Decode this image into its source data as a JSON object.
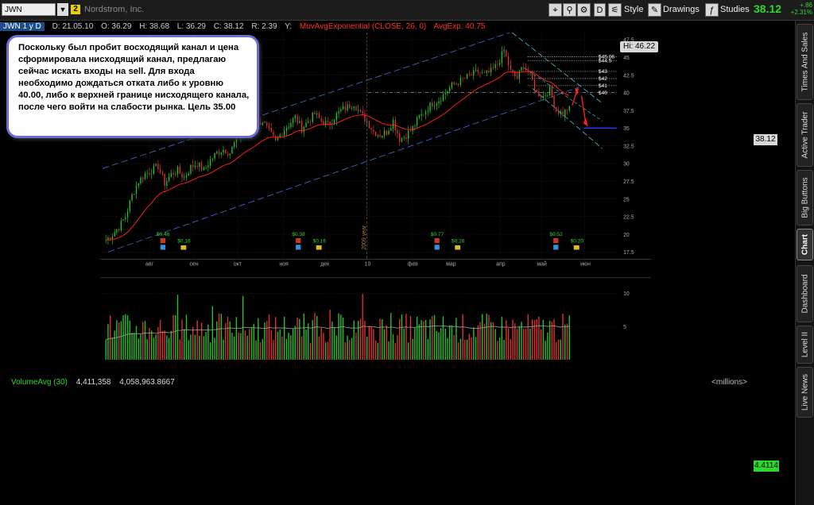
{
  "toolbar": {
    "symbol": "JWN",
    "link_badge": "2",
    "company": "Nordstrom, Inc.",
    "period": "D",
    "style_label": "Style",
    "drawings_label": "Drawings",
    "studies_label": "Studies",
    "last_price": "38.12",
    "change": "+.86",
    "change_pct": "+2.31%"
  },
  "infobar": {
    "tag": "JWN 1 y D",
    "date": "D: 21.05.10",
    "open": "O: 36.29",
    "high": "H: 38.68",
    "low": "L: 36.29",
    "close": "C: 38.12",
    "range": "R: 2.39",
    "y": "Y:",
    "study1": "MovAvgExponential (CLOSE, 26, 0)",
    "study1_value": "AvgExp: 40.75"
  },
  "note": {
    "text": "Поскольку был пробит восходящий канал и цена сформировала нисходящий канал, предлагаю сейчас искать входы на sell. Для входа необходимо дождаться отката либо к уровню 40.00, либо к верхней границе нисходящего канала, после чего войти на слабости рынка. Цель 35.00"
  },
  "hi_label": "Hi: 46.22",
  "cursor_price": "38.12",
  "volume": {
    "label": "VolumeAvg (30)",
    "value1": "4,411,358",
    "value2": "4,058,963.8667",
    "units": "<millions>",
    "last": "4.4114"
  },
  "sidebar": {
    "tabs": [
      "Times And Sales",
      "Active Trader",
      "Big Buttons",
      "Chart",
      "Dashboard",
      "Level II",
      "Live News"
    ],
    "active": "Chart"
  },
  "chart_data": {
    "type": "candlestick",
    "title": "JWN 1 y D",
    "x_labels": [
      "авг",
      "сен",
      "окт",
      "ноя",
      "дек",
      "10",
      "фев",
      "мар",
      "апр",
      "май",
      "июн"
    ],
    "year_marker": "2009 year",
    "ylim": [
      16.5,
      48.5
    ],
    "y_ticks": [
      17.5,
      20,
      22.5,
      25,
      27.5,
      30,
      32.5,
      35,
      37.5,
      40,
      42.5,
      45,
      47.5
    ],
    "close_path": [
      19.2,
      20.0,
      21.0,
      22.5,
      25.5,
      27.5,
      28.5,
      29.0,
      29.6,
      27.2,
      28.5,
      29.0,
      28.0,
      29.5,
      30.0,
      29.0,
      30.5,
      31.5,
      32.0,
      31.5,
      33.5,
      34.5,
      34.0,
      35.5,
      36.0,
      34.5,
      33.0,
      34.5,
      35.5,
      36.5,
      35.0,
      36.0,
      37.0,
      36.0,
      35.5,
      36.5,
      37.5,
      38.0,
      38.5,
      37.0,
      36.0,
      34.5,
      34.0,
      34.5,
      36.0,
      33.5,
      34.0,
      35.0,
      36.5,
      37.5,
      38.5,
      39.0,
      40.0,
      41.0,
      41.5,
      42.0,
      42.5,
      43.0,
      42.5,
      43.0,
      44.0,
      46.0,
      43.0,
      42.0,
      44.0,
      42.5,
      40.0,
      39.5,
      40.5,
      37.5,
      37.0,
      38.1
    ],
    "ema": {
      "name": "MovAvgExponential (CLOSE, 26, 0)",
      "last": 40.75
    },
    "levels": [
      {
        "label": "$45.06",
        "value": 45.06
      },
      {
        "label": "$44.5",
        "value": 44.5
      },
      {
        "label": "$43",
        "value": 43
      },
      {
        "label": "$42",
        "value": 42
      },
      {
        "label": "$41",
        "value": 41
      },
      {
        "label": "$40",
        "value": 40
      }
    ],
    "target": 35.0,
    "hi": 46.22,
    "last": 38.12,
    "dividends": [
      {
        "split": "$0.48",
        "div": "$0.16"
      },
      {
        "split": "$0.38",
        "div": "$0.16"
      },
      {
        "split": "$0.77",
        "div": "$0.16"
      },
      {
        "split": "$0.52",
        "div": "$0.20"
      }
    ],
    "volume_ticks": [
      5,
      10
    ],
    "volume_avg_last": 4.4114
  }
}
